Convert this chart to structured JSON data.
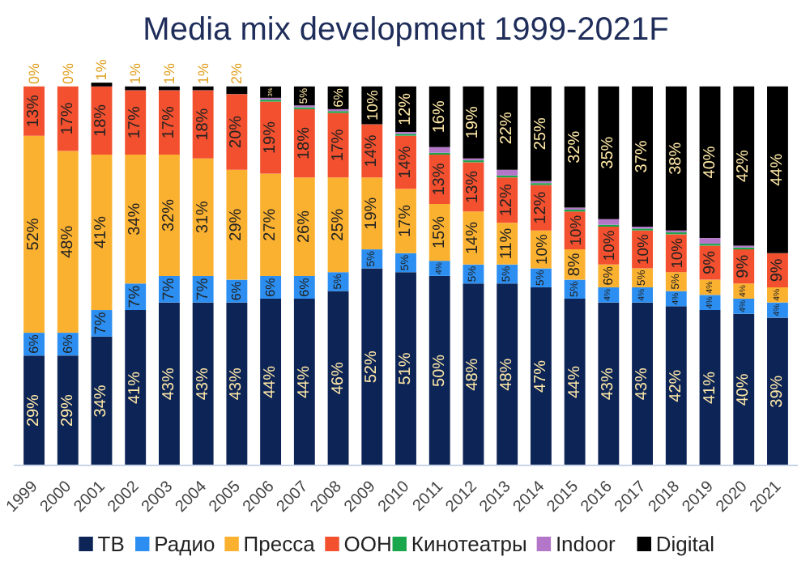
{
  "chart_data": {
    "type": "bar",
    "stacked": true,
    "title": "Media mix development 1999-2021F",
    "legend": "bottom",
    "grid": false,
    "categories": [
      "1999",
      "2000",
      "2001",
      "2002",
      "2003",
      "2004",
      "2005",
      "2006",
      "2007",
      "2008",
      "2009",
      "2010",
      "2011",
      "2012",
      "2013",
      "2014",
      "2015",
      "2016",
      "2017",
      "2018",
      "2019",
      "2020",
      "2021"
    ],
    "series": [
      {
        "name": "ТВ",
        "color": "#0d2456",
        "values": [
          29,
          29,
          34,
          41,
          43,
          43,
          43,
          44,
          44,
          46,
          52,
          51,
          50,
          48,
          48,
          47,
          44,
          43,
          43,
          42,
          41,
          40,
          39
        ],
        "value_labels": [
          "29%",
          "29%",
          "34%",
          "41%",
          "43%",
          "43%",
          "43%",
          "44%",
          "44%",
          "46%",
          "52%",
          "51%",
          "50%",
          "48%",
          "48%",
          "47%",
          "44%",
          "43%",
          "43%",
          "42%",
          "41%",
          "40%",
          "39%"
        ]
      },
      {
        "name": "Радио",
        "color": "#2b8ef0",
        "values": [
          6,
          6,
          7,
          7,
          7,
          7,
          6,
          6,
          6,
          5,
          5,
          5,
          4,
          5,
          5,
          5,
          5,
          4,
          4,
          4,
          4,
          4,
          4
        ],
        "value_labels": [
          "6%",
          "6%",
          "7%",
          "7%",
          "7%",
          "7%",
          "6%",
          "6%",
          "6%",
          "5%",
          "5%",
          "5%",
          "4%",
          "5%",
          "5%",
          "5%",
          "5%",
          "4%",
          "4%",
          "4%",
          "4%",
          "4%",
          "4%"
        ]
      },
      {
        "name": "Пресса",
        "color": "#fbb130",
        "values": [
          52,
          48,
          41,
          34,
          32,
          31,
          29,
          27,
          26,
          25,
          19,
          17,
          15,
          14,
          11,
          10,
          8,
          6,
          5,
          5,
          4,
          4,
          4
        ],
        "value_labels": [
          "52%",
          "48%",
          "41%",
          "34%",
          "32%",
          "31%",
          "29%",
          "27%",
          "26%",
          "25%",
          "19%",
          "17%",
          "15%",
          "14%",
          "11%",
          "10%",
          "8%",
          "6%",
          "5%",
          "5%",
          "4%",
          "4%",
          "4%"
        ]
      },
      {
        "name": "OOH",
        "color": "#f2502e",
        "values": [
          13,
          17,
          18,
          17,
          17,
          18,
          20,
          19,
          18,
          17,
          14,
          14,
          13,
          13,
          12,
          12,
          10,
          10,
          10,
          10,
          9,
          9,
          9
        ],
        "value_labels": [
          "13%",
          "17%",
          "18%",
          "17%",
          "17%",
          "18%",
          "20%",
          "19%",
          "18%",
          "17%",
          "14%",
          "14%",
          "13%",
          "13%",
          "12%",
          "12%",
          "10%",
          "10%",
          "10%",
          "10%",
          "9%",
          "9%",
          "9%"
        ]
      },
      {
        "name": "Кинотеатры",
        "color": "#1aa64a",
        "values": [
          0,
          0,
          0,
          0,
          0,
          0,
          0,
          0.5,
          0.5,
          0.5,
          0,
          0.5,
          0.5,
          0.5,
          0.5,
          0.5,
          0.5,
          0.5,
          0.5,
          0.5,
          0.5,
          0.5,
          0
        ]
      },
      {
        "name": "Indoor",
        "color": "#b476c8",
        "values": [
          0,
          0,
          0,
          0,
          0,
          0,
          0,
          0.5,
          0.5,
          0.5,
          0,
          0.5,
          1.5,
          0.5,
          1.5,
          0.5,
          0.5,
          1.5,
          0.5,
          0.5,
          1.5,
          0.5,
          0
        ]
      },
      {
        "name": "Digital",
        "color": "#000000",
        "values": [
          0,
          0,
          1,
          1,
          1,
          1,
          2,
          3,
          5,
          6,
          10,
          12,
          16,
          19,
          22,
          25,
          32,
          35,
          37,
          38,
          40,
          42,
          44
        ],
        "value_labels": [
          "0%",
          "0%",
          "1%",
          "1%",
          "1%",
          "1%",
          "2%",
          "3%",
          "5%",
          "6%",
          "10%",
          "12%",
          "16%",
          "19%",
          "22%",
          "25%",
          "32%",
          "35%",
          "37%",
          "38%",
          "40%",
          "42%",
          "44%"
        ]
      }
    ]
  }
}
